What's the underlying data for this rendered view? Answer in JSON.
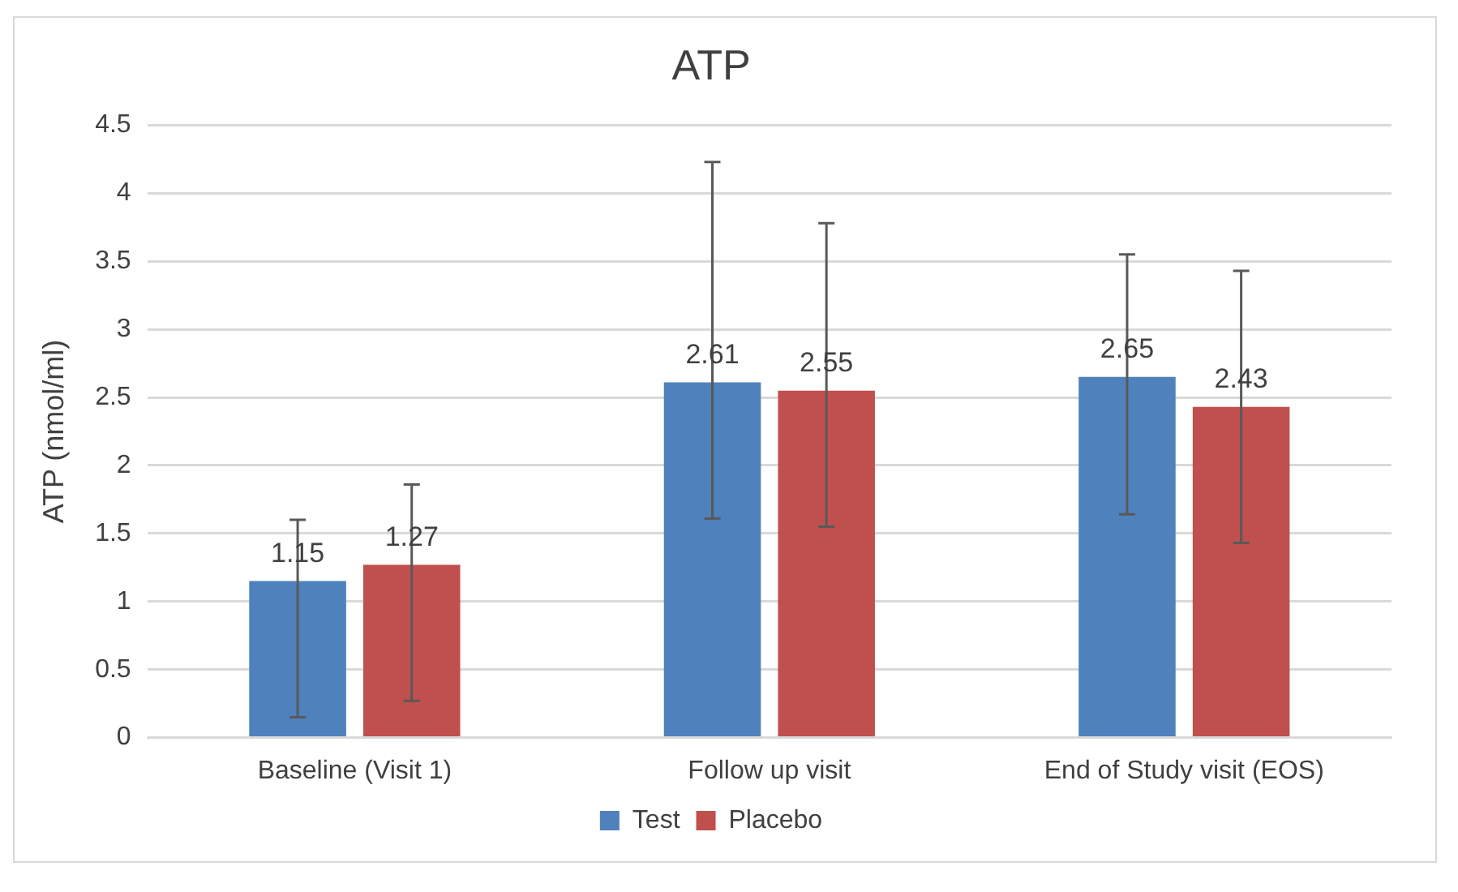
{
  "chart_data": {
    "type": "bar",
    "title": "ATP",
    "ylabel": "ATP (nmol/ml)",
    "categories": [
      "Baseline (Visit 1)",
      "Follow up visit",
      "End of Study visit (EOS)"
    ],
    "series": [
      {
        "name": "Test",
        "color": "#4f81bd",
        "values": [
          1.15,
          2.61,
          2.65
        ],
        "errors": [
          [
            0.15,
            1.6
          ],
          [
            1.61,
            4.23
          ],
          [
            1.64,
            3.55
          ]
        ]
      },
      {
        "name": "Placebo",
        "color": "#c0504d",
        "values": [
          1.27,
          2.55,
          2.43
        ],
        "errors": [
          [
            0.27,
            1.86
          ],
          [
            1.55,
            3.78
          ],
          [
            1.43,
            3.43
          ]
        ]
      }
    ],
    "ylim": [
      0,
      4.5
    ],
    "yticks": [
      0,
      0.5,
      1,
      1.5,
      2,
      2.5,
      3,
      3.5,
      4,
      4.5
    ],
    "grid": "y",
    "legend": "bottom",
    "data_labels": true
  }
}
